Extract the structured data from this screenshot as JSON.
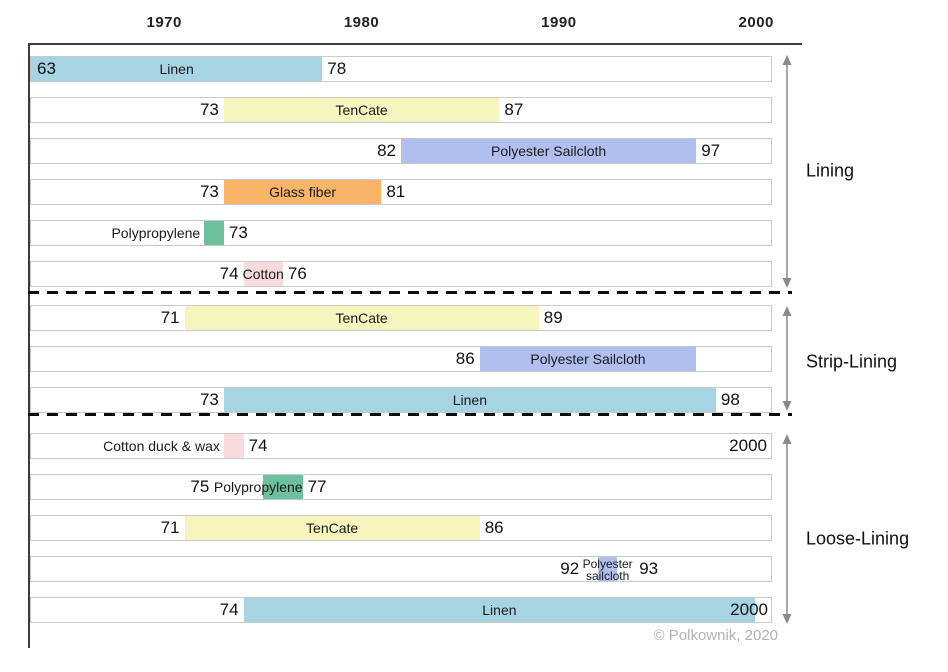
{
  "chart_data": {
    "type": "bar",
    "variant": "timeline-gantt",
    "title": "",
    "x_axis": {
      "position": "top",
      "ticks": [
        "1970",
        "1980",
        "1990",
        "2000"
      ],
      "tick_years": [
        1970,
        1980,
        1990,
        2000
      ],
      "domain": [
        1963.2,
        2000.8
      ]
    },
    "grid": "off",
    "legend": "none",
    "colors": {
      "blue": "#a6d4e2",
      "yellow": "#f5f5bd",
      "purple": "#b0bfee",
      "orange": "#f8b568",
      "green": "#6cc09c",
      "pink": "#f8dcdc"
    },
    "sections": [
      {
        "label": "Lining",
        "rows": [
          {
            "material": "Linen",
            "color": "blue",
            "start": 1963,
            "end": 1978,
            "start_label": "63",
            "end_label": "78",
            "label_position": "center"
          },
          {
            "material": "TenCate",
            "color": "yellow",
            "start": 1973,
            "end": 1987,
            "start_label": "73",
            "end_label": "87",
            "label_position": "center"
          },
          {
            "material": "Polyester Sailcloth",
            "color": "purple",
            "start": 1982,
            "end": 1997,
            "start_label": "82",
            "end_label": "97",
            "label_position": "center"
          },
          {
            "material": "Glass fiber",
            "color": "orange",
            "start": 1973,
            "end": 1981,
            "start_label": "73",
            "end_label": "81",
            "label_position": "center"
          },
          {
            "material": "Polypropylene",
            "color": "green",
            "start": 1972,
            "end": 1973,
            "start_label": "",
            "end_label": "73",
            "label_position": "left-outside"
          },
          {
            "material": "Cotton",
            "color": "pink",
            "start": 1974,
            "end": 1976,
            "start_label": "74",
            "end_label": "76",
            "label_position": "center"
          }
        ]
      },
      {
        "label": "Strip-Lining",
        "rows": [
          {
            "material": "TenCate",
            "color": "yellow",
            "start": 1971,
            "end": 1989,
            "start_label": "71",
            "end_label": "89",
            "label_position": "center"
          },
          {
            "material": "Polyester Sailcloth",
            "color": "purple",
            "start": 1986,
            "end": 1997,
            "start_label": "86",
            "end_label": "",
            "label_position": "center"
          },
          {
            "material": "Linen",
            "color": "blue",
            "start": 1973,
            "end": 1998,
            "start_label": "73",
            "end_label": "98",
            "label_position": "center"
          }
        ]
      },
      {
        "label": "Loose-Lining",
        "rows": [
          {
            "material": "Cotton duck & wax",
            "color": "pink",
            "start": 1973,
            "end": 1974,
            "start_label": "",
            "end_label": "74",
            "label_position": "left-outside",
            "right_label": "2000"
          },
          {
            "material": "Polypropylene",
            "color": "green",
            "start": 1975,
            "end": 1977,
            "start_label": "75",
            "end_label": "77",
            "label_position": "overlap-left"
          },
          {
            "material": "TenCate",
            "color": "yellow",
            "start": 1971,
            "end": 1986,
            "start_label": "71",
            "end_label": "86",
            "label_position": "center"
          },
          {
            "material": "Polyester sailcloth",
            "color": "purple",
            "start": 1992,
            "end": 1993,
            "start_label": "92",
            "end_label": "93",
            "label_position": "center",
            "wrap": true
          },
          {
            "material": "Linen",
            "color": "blue",
            "start": 1974,
            "end": 2000,
            "start_label": "74",
            "end_label": "2000",
            "label_position": "center"
          }
        ]
      }
    ],
    "copyright": "© Polkownik, 2020"
  }
}
